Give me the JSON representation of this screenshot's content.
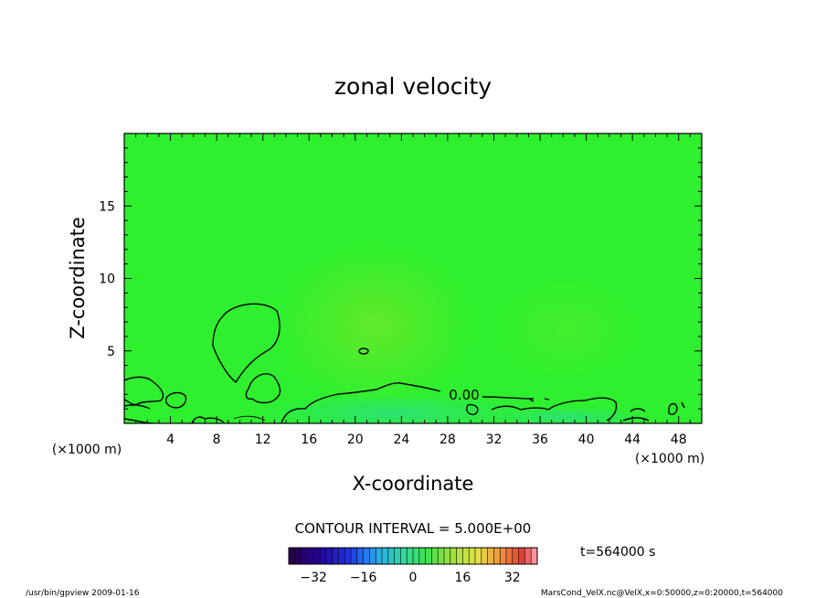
{
  "chart_data": {
    "type": "heatmap",
    "title": "zonal velocity",
    "xlabel": "X-coordinate",
    "ylabel": "Z-coordinate",
    "x_unit": "(×1000 m)",
    "y_unit": "(×1000 m)",
    "xlim": [
      0,
      50
    ],
    "ylim": [
      0,
      20
    ],
    "x_ticks": [
      4,
      8,
      12,
      16,
      20,
      24,
      28,
      32,
      36,
      40,
      44,
      48
    ],
    "y_ticks": [
      5,
      10,
      15
    ],
    "field_color": "#2ef02e",
    "contour_label": "0.00",
    "contour_interval": "CONTOUR INTERVAL = 5.000E+00",
    "time_label": "t=564000 s",
    "colorbar": {
      "min": -40,
      "max": 40,
      "step": 2,
      "tick_values": [
        -32,
        -16,
        0,
        16,
        32
      ],
      "tick_labels": [
        "−32",
        "−16",
        "0",
        "16",
        "32"
      ]
    }
  },
  "footer": {
    "left": "/usr/bin/gpview  2009-01-16",
    "right": "MarsCond_VelX.nc@VelX,x=0:50000,z=0:20000,t=564000"
  }
}
